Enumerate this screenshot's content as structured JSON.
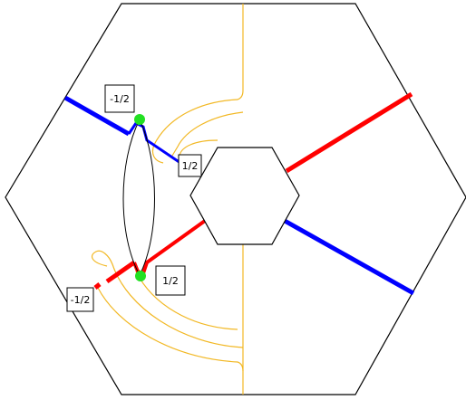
{
  "labels": {
    "top_left": "-1/2",
    "mid_right": "1/2",
    "bottom_right": "1/2",
    "bottom_left": "-1/2"
  },
  "colors": {
    "blue": "#0000ff",
    "red": "#ff0000",
    "orange": "#f2b824",
    "green": "#22e022",
    "outline": "#000000"
  }
}
